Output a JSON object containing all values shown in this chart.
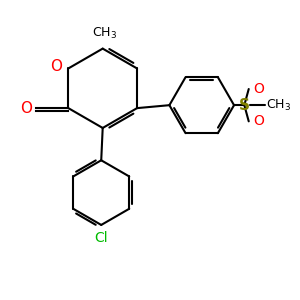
{
  "bg_color": "#ffffff",
  "bond_color": "#000000",
  "oxygen_color": "#ff0000",
  "sulfur_color": "#808000",
  "chlorine_color": "#00bb00",
  "line_width": 1.5,
  "fig_size": [
    3.0,
    3.0
  ],
  "dpi": 100,
  "xlim": [
    0,
    10
  ],
  "ylim": [
    0,
    10
  ]
}
